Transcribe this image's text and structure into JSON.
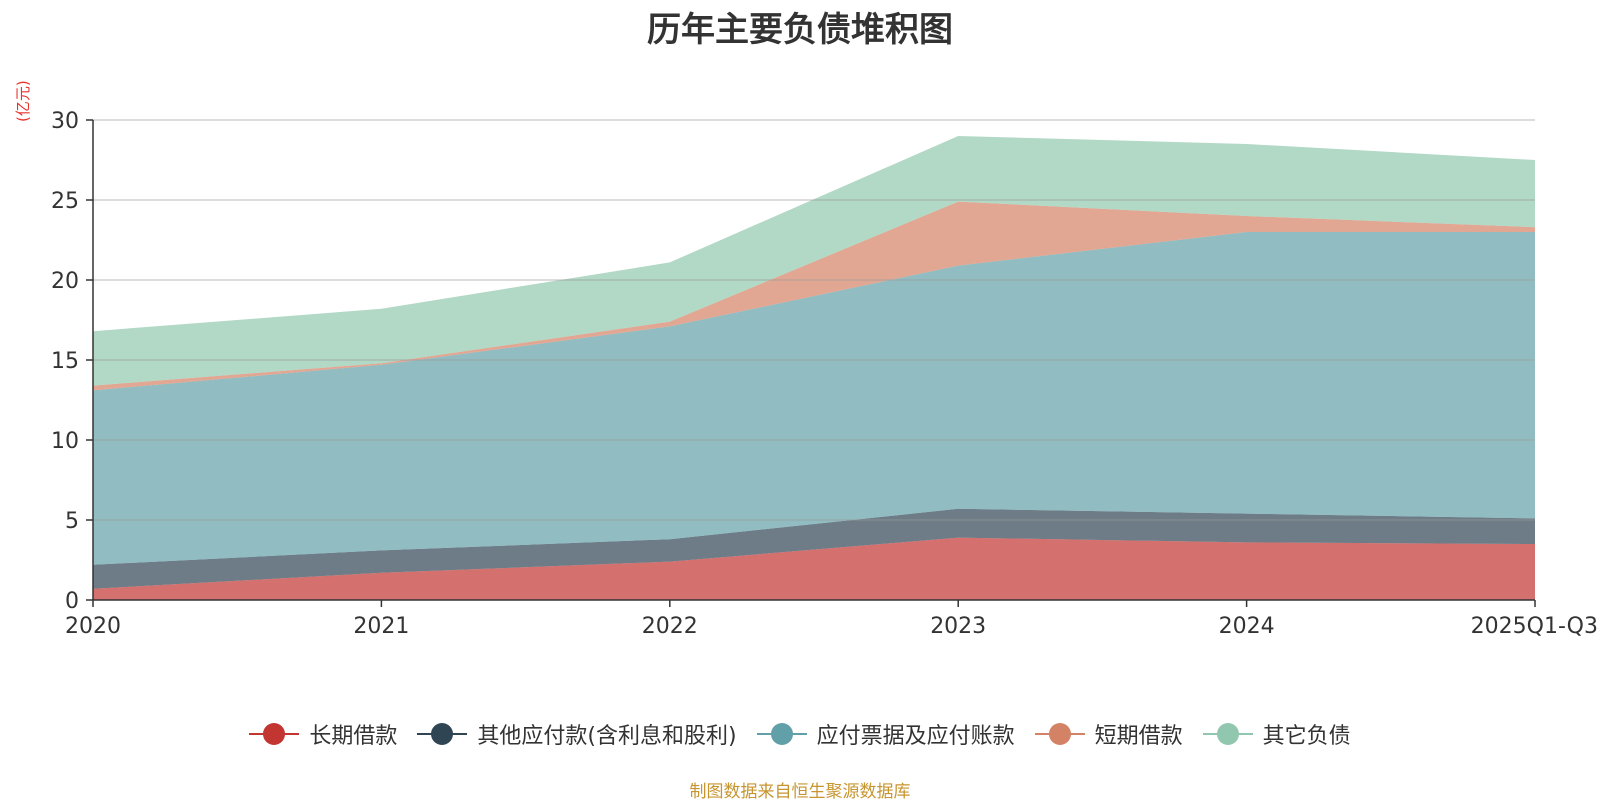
{
  "title": "历年主要负债堆积图",
  "unit_label": "(亿元)",
  "source_note": "制图数据来自恒生聚源数据库",
  "chart_data": {
    "type": "area",
    "stacked": true,
    "title": "历年主要负债堆积图",
    "ylabel": "(亿元)",
    "categories": [
      "2020",
      "2021",
      "2022",
      "2023",
      "2024",
      "2025Q1-Q3"
    ],
    "ylim": [
      0,
      30
    ],
    "yticks": [
      0,
      5,
      10,
      15,
      20,
      25,
      30
    ],
    "grid": true,
    "legend_position": "bottom-center",
    "series": [
      {
        "name": "长期借款",
        "color": "#c23531",
        "values": [
          0.7,
          1.7,
          2.4,
          3.9,
          3.6,
          3.5
        ]
      },
      {
        "name": "其他应付款(含利息和股利)",
        "color": "#2f4554",
        "values": [
          1.5,
          1.4,
          1.4,
          1.8,
          1.8,
          1.6
        ]
      },
      {
        "name": "应付票据及应付账款",
        "color": "#61a0a8",
        "values": [
          10.9,
          11.6,
          13.3,
          15.2,
          17.6,
          17.9
        ]
      },
      {
        "name": "短期借款",
        "color": "#d48265",
        "values": [
          0.3,
          0.1,
          0.3,
          4.0,
          1.0,
          0.3
        ]
      },
      {
        "name": "其它负债",
        "color": "#91c7ae",
        "values": [
          3.4,
          3.4,
          3.7,
          4.1,
          4.5,
          4.2
        ]
      }
    ]
  }
}
